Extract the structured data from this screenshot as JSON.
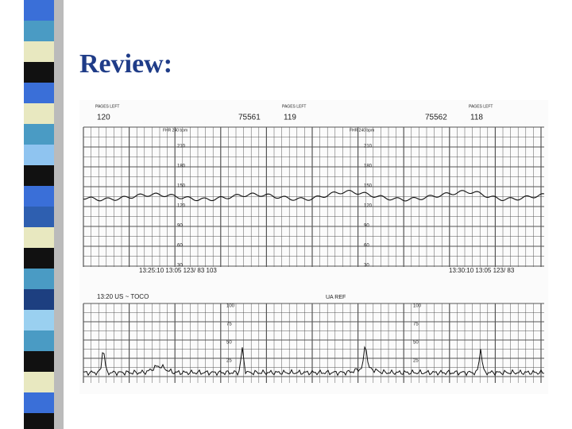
{
  "title": "Review:",
  "strip": {
    "upper": {
      "pages_left": [
        {
          "label": "PAGES LEFT",
          "value": "120"
        },
        {
          "label": "PAGES LEFT",
          "value": "119"
        },
        {
          "label": "PAGES LEFT",
          "value": "118"
        }
      ],
      "paper_ids": [
        "75561",
        "75562"
      ],
      "scale_label": "FHR 240 bpm",
      "scale_ticks": [
        "210",
        "180",
        "150",
        "120",
        "90",
        "60",
        "30"
      ],
      "timestamps": [
        "13:25:10  13:05  123/ 83  103",
        "13:30:10  13:05  123/ 83"
      ]
    },
    "lower": {
      "header": "13:20 US ~ TOCO",
      "reference": "UA REF",
      "scale_ticks": [
        "100",
        "75",
        "50",
        "25"
      ]
    }
  }
}
